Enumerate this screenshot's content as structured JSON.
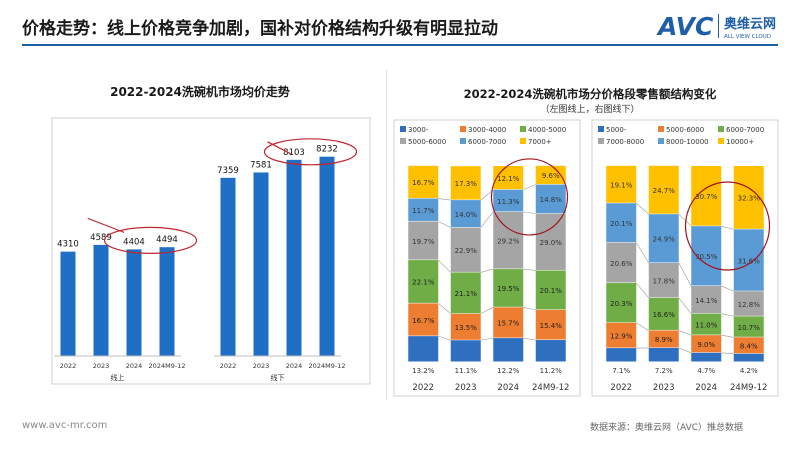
{
  "page": {
    "title": "价格走势：线上价格竞争加剧，国补对价格结构升级有明显拉动",
    "logo_name": "奥维云网",
    "logo_sub": "ALL VIEW CLOUD",
    "website": "www.avc-mr.com",
    "credit": "数据来源：奥维云网（AVC）推总数据",
    "accent": "#1f5fa8"
  },
  "chart_data": [
    {
      "type": "bar",
      "title": "2022-2024洗碗机市场均价走势",
      "groups": [
        {
          "name": "线上",
          "categories": [
            "2022",
            "2023",
            "2024",
            "2024M9-12"
          ],
          "values": [
            4310,
            4589,
            4404,
            4494
          ]
        },
        {
          "name": "线下",
          "categories": [
            "2022",
            "2023",
            "2024",
            "2024M9-12"
          ],
          "values": [
            7359,
            7581,
            8103,
            8232
          ]
        }
      ],
      "ylim": [
        0,
        9500
      ],
      "color": "#1f6fc4",
      "xlabel": "",
      "ylabel": ""
    },
    {
      "type": "bar",
      "stacked": true,
      "title": "2022-2024洗碗机市场分价格段零售额结构变化",
      "subtitle": "（左图线上，右图线下）",
      "units": "%",
      "panels": [
        {
          "name": "线上",
          "categories": [
            "2022",
            "2023",
            "2024",
            "24M9-12"
          ],
          "series": [
            {
              "name": "3000-",
              "color": "#2f6fc0",
              "values": [
                13.2,
                11.1,
                12.2,
                11.2
              ]
            },
            {
              "name": "3000-4000",
              "color": "#ed7d31",
              "values": [
                16.7,
                13.5,
                15.7,
                15.4
              ]
            },
            {
              "name": "4000-5000",
              "color": "#70ad47",
              "values": [
                22.1,
                21.1,
                19.5,
                20.1
              ]
            },
            {
              "name": "5000-6000",
              "color": "#a5a5a5",
              "values": [
                19.7,
                22.9,
                29.2,
                29.0
              ]
            },
            {
              "name": "6000-7000",
              "color": "#5b9bd5",
              "values": [
                11.7,
                14.0,
                11.3,
                14.8
              ]
            },
            {
              "name": "7000+",
              "color": "#ffc000",
              "values": [
                16.7,
                17.3,
                12.1,
                9.6
              ]
            }
          ],
          "legend": [
            "3000-",
            "3000-4000",
            "4000-5000",
            "5000-6000",
            "6000-7000",
            "7000+"
          ]
        },
        {
          "name": "线下",
          "categories": [
            "2022",
            "2023",
            "2024",
            "24M9-12"
          ],
          "series": [
            {
              "name": "5000-",
              "color": "#2f6fc0",
              "values": [
                7.1,
                7.2,
                4.7,
                4.2
              ]
            },
            {
              "name": "5000-6000",
              "color": "#ed7d31",
              "values": [
                12.9,
                8.9,
                9.0,
                8.4
              ]
            },
            {
              "name": "6000-7000",
              "color": "#70ad47",
              "values": [
                20.3,
                16.6,
                11.0,
                10.7
              ]
            },
            {
              "name": "7000-8000",
              "color": "#a5a5a5",
              "values": [
                20.6,
                17.8,
                14.1,
                12.8
              ]
            },
            {
              "name": "8000-10000",
              "color": "#5b9bd5",
              "values": [
                20.1,
                24.9,
                30.5,
                31.6
              ]
            },
            {
              "name": "10000+",
              "color": "#ffc000",
              "values": [
                19.1,
                24.7,
                30.7,
                32.3
              ]
            }
          ],
          "legend": [
            "5000-",
            "5000-6000",
            "6000-7000",
            "7000-8000",
            "8000-10000",
            "10000+"
          ]
        }
      ]
    }
  ]
}
